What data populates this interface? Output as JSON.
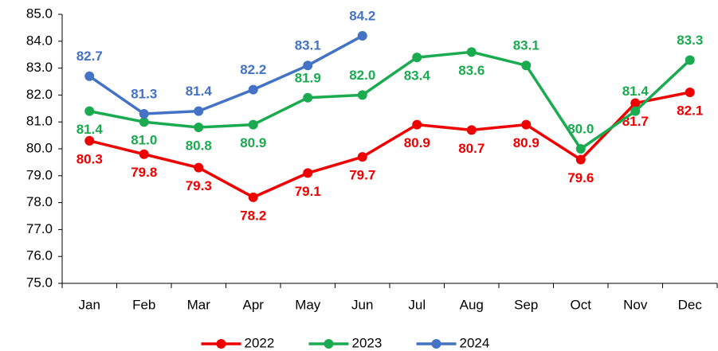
{
  "chart_data": {
    "type": "line",
    "categories": [
      "Jan",
      "Feb",
      "Mar",
      "Apr",
      "May",
      "Jun",
      "Jul",
      "Aug",
      "Sep",
      "Oct",
      "Nov",
      "Dec"
    ],
    "series": [
      {
        "name": "2022",
        "color": "#ee0000",
        "values": [
          80.3,
          79.8,
          79.3,
          78.2,
          79.1,
          79.7,
          80.9,
          80.7,
          80.9,
          79.6,
          81.7,
          82.1
        ],
        "value_labels": [
          "80.3",
          "79.8",
          "79.3",
          "78.2",
          "79.1",
          "79.7",
          "80.9",
          "80.7",
          "80.9",
          "79.6",
          "81.7",
          "82.1"
        ]
      },
      {
        "name": "2023",
        "color": "#1aaa50",
        "values": [
          81.4,
          81.0,
          80.8,
          80.9,
          81.9,
          82.0,
          83.4,
          83.6,
          83.1,
          80.0,
          81.4,
          83.3
        ],
        "value_labels": [
          "81.4",
          "81.0",
          "80.8",
          "80.9",
          "81.9",
          "82.0",
          "83.4",
          "83.6",
          "83.1",
          "80.0",
          "81.4",
          "83.3"
        ]
      },
      {
        "name": "2024",
        "color": "#4472c4",
        "values": [
          82.7,
          81.3,
          81.4,
          82.2,
          83.1,
          84.2,
          null,
          null,
          null,
          null,
          null,
          null
        ],
        "value_labels": [
          "82.7",
          "81.3",
          "81.4",
          "82.2",
          "83.1",
          "84.2",
          null,
          null,
          null,
          null,
          null,
          null
        ]
      }
    ],
    "ylim": [
      75,
      85
    ],
    "yticks": [
      {
        "value": 75,
        "label": "75.0"
      },
      {
        "value": 76,
        "label": "76.0"
      },
      {
        "value": 77,
        "label": "77.0"
      },
      {
        "value": 78,
        "label": "78.0"
      },
      {
        "value": 79,
        "label": "79.0"
      },
      {
        "value": 80,
        "label": "80.0"
      },
      {
        "value": 81,
        "label": "81.0"
      },
      {
        "value": 82,
        "label": "82.0"
      },
      {
        "value": 83,
        "label": "83.0"
      },
      {
        "value": 84,
        "label": "84.0"
      },
      {
        "value": 85,
        "label": "85.0"
      }
    ],
    "grid": false,
    "legend": "bottom"
  }
}
